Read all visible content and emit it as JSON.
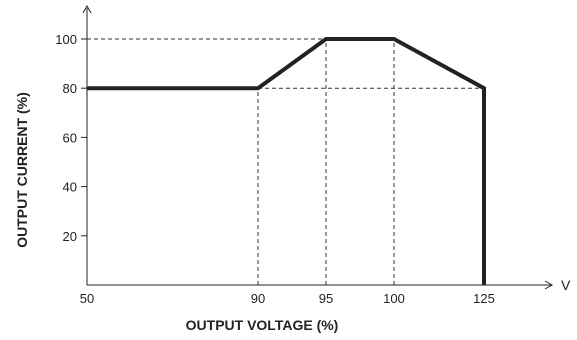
{
  "chart_data": {
    "type": "line",
    "xlabel": "OUTPUT VOLTAGE (%)",
    "ylabel": "OUTPUT CURRENT (%)",
    "x_unit_label": "V",
    "xlim": [
      50,
      135
    ],
    "ylim": [
      0,
      110
    ],
    "x_ticks": [
      50,
      90,
      95,
      100,
      125
    ],
    "y_ticks": [
      20,
      40,
      60,
      80,
      100
    ],
    "grid": "dashed guide lines at key points",
    "series": [
      {
        "points": [
          {
            "x": 50,
            "y": 80
          },
          {
            "x": 90,
            "y": 80
          },
          {
            "x": 95,
            "y": 100
          },
          {
            "x": 100,
            "y": 100
          },
          {
            "x": 125,
            "y": 80
          },
          {
            "x": 125,
            "y": 0
          }
        ]
      }
    ],
    "guides": [
      {
        "from": {
          "x": 50,
          "y": 100
        },
        "to": {
          "x": 95,
          "y": 100
        }
      },
      {
        "from": {
          "x": 90,
          "y": 80
        },
        "to": {
          "x": 125,
          "y": 80
        }
      },
      {
        "from": {
          "x": 90,
          "y": 0
        },
        "to": {
          "x": 90,
          "y": 80
        }
      },
      {
        "from": {
          "x": 95,
          "y": 0
        },
        "to": {
          "x": 95,
          "y": 100
        }
      },
      {
        "from": {
          "x": 100,
          "y": 0
        },
        "to": {
          "x": 100,
          "y": 100
        }
      }
    ]
  }
}
